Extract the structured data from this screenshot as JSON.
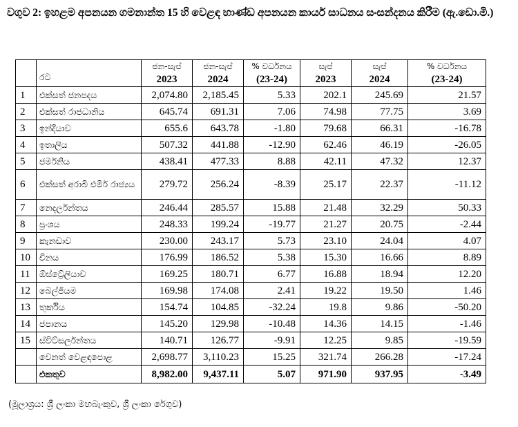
{
  "title": "වගුව 2: ඉහළම අපනයන ගමනාන්ත 15 හි වෙළඳ භාණ්ඩ අපනයන කාර්ය සාධනය සංසන්දනය කිරීම (ඇ.ඩො.මි.)",
  "headers": {
    "country": "රට",
    "col1_label": "ජන-සැප්",
    "col1_year": "2023",
    "col2_label": "ජන-සැප්",
    "col2_year": "2024",
    "col3_label": "% වර්ධනය",
    "col3_year": "(23-24)",
    "col4_label": "සැප්",
    "col4_year": "2023",
    "col5_label": "සැප්",
    "col5_year": "2024",
    "col6_label": "% වර්ධනය",
    "col6_year": "(23-24)"
  },
  "rows": [
    {
      "idx": "1",
      "name": "එක්සත් ජනපදය",
      "v": [
        "2,074.80",
        "2,185.45",
        "5.33",
        "202.1",
        "245.69",
        "21.57"
      ]
    },
    {
      "idx": "2",
      "name": "එක්සත් රාජධානිය",
      "v": [
        "645.74",
        "691.31",
        "7.06",
        "74.98",
        "77.75",
        "3.69"
      ]
    },
    {
      "idx": "3",
      "name": "ඉන්දියාව",
      "v": [
        "655.6",
        "643.78",
        "-1.80",
        "79.68",
        "66.31",
        "-16.78"
      ]
    },
    {
      "idx": "4",
      "name": "ඉතාලිය",
      "v": [
        "507.32",
        "441.88",
        "-12.90",
        "62.46",
        "46.19",
        "-26.05"
      ]
    },
    {
      "idx": "5",
      "name": "ජර්මනිය",
      "v": [
        "438.41",
        "477.33",
        "8.88",
        "42.11",
        "47.32",
        "12.37"
      ]
    },
    {
      "idx": "6",
      "name": "එක්සත් අරාබි එමීර් රාජ්‍යය",
      "v": [
        "279.72",
        "256.24",
        "-8.39",
        "25.17",
        "22.37",
        "-11.12"
      ]
    },
    {
      "idx": "7",
      "name": "නෙදර්ලන්තය",
      "v": [
        "246.44",
        "285.57",
        "15.88",
        "21.48",
        "32.29",
        "50.33"
      ]
    },
    {
      "idx": "8",
      "name": "ප්‍රංශය",
      "v": [
        "248.33",
        "199.24",
        "-19.77",
        "21.27",
        "20.75",
        "-2.44"
      ]
    },
    {
      "idx": "9",
      "name": "කැනඩාව",
      "v": [
        "230.00",
        "243.17",
        "5.73",
        "23.10",
        "24.04",
        "4.07"
      ]
    },
    {
      "idx": "10",
      "name": "චීනය",
      "v": [
        "176.99",
        "186.52",
        "5.38",
        "15.30",
        "16.66",
        "8.89"
      ]
    },
    {
      "idx": "11",
      "name": "ඕස්ට්‍රේලියාව",
      "v": [
        "169.25",
        "180.71",
        "6.77",
        "16.88",
        "18.94",
        "12.20"
      ]
    },
    {
      "idx": "12",
      "name": "බෙල්ජියම",
      "v": [
        "169.98",
        "174.08",
        "2.41",
        "19.22",
        "19.50",
        "1.46"
      ]
    },
    {
      "idx": "13",
      "name": "තුර්කිය",
      "v": [
        "154.74",
        "104.85",
        "-32.24",
        "19.8",
        "9.86",
        "-50.20"
      ]
    },
    {
      "idx": "14",
      "name": "ජපානය",
      "v": [
        "145.20",
        "129.98",
        "-10.48",
        "14.36",
        "14.15",
        "-1.46"
      ]
    },
    {
      "idx": "15",
      "name": "ස්විට්සර්ලන්තය",
      "v": [
        "140.71",
        "126.77",
        "-9.91",
        "12.25",
        "9.85",
        "-19.59"
      ]
    }
  ],
  "other": {
    "name": "වෙනත් වෙළඳපොළ",
    "v": [
      "2,698.77",
      "3,110.23",
      "15.25",
      "321.74",
      "266.28",
      "-17.24"
    ]
  },
  "total": {
    "name": "එකතුව",
    "v": [
      "8,982.00",
      "9,437.11",
      "5.07",
      "971.90",
      "937.95",
      "-3.49"
    ]
  },
  "source": "(මූලාශ්‍රය: ශ්‍රී ලංකා මහබැංකුව, ශ්‍රී ලංකා රේගුව)"
}
